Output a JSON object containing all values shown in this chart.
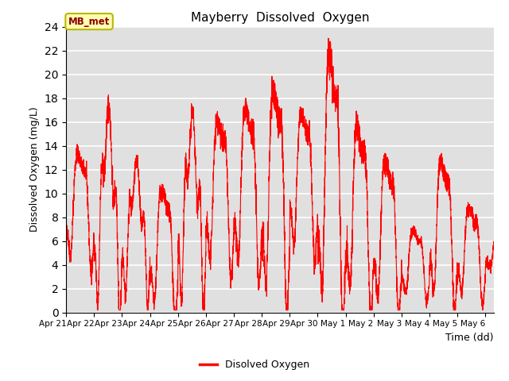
{
  "title": "Mayberry  Dissolved  Oxygen",
  "xlabel": "Time (dd)",
  "ylabel": "Dissolved Oxygen (mg/L)",
  "legend_label": "Disolved Oxygen",
  "annotation_text": "MB_met",
  "ylim": [
    0,
    24
  ],
  "yticks": [
    0,
    2,
    4,
    6,
    8,
    10,
    12,
    14,
    16,
    18,
    20,
    22,
    24
  ],
  "line_color": "#ff0000",
  "bg_color": "#e0e0e0",
  "tick_labels": [
    "Apr 21",
    "Apr 22",
    "Apr 23",
    "Apr 24",
    "Apr 25",
    "Apr 26",
    "Apr 27",
    "Apr 28",
    "Apr 29",
    "Apr 30",
    "May 1",
    "May 2",
    "May 3",
    "May 4",
    "May 5",
    "May 6"
  ],
  "tick_positions": [
    0,
    1,
    2,
    3,
    4,
    5,
    6,
    7,
    8,
    9,
    10,
    11,
    12,
    13,
    14,
    15
  ],
  "xlim": [
    0,
    15.3
  ],
  "day_envelopes": [
    {
      "max": 13.5,
      "min": 4.5,
      "peaks": 3
    },
    {
      "max": 16.0,
      "min": 1.5,
      "peaks": 4
    },
    {
      "max": 12.0,
      "min": 2.0,
      "peaks": 4
    },
    {
      "max": 10.5,
      "min": 0.5,
      "peaks": 3
    },
    {
      "max": 15.5,
      "min": 2.0,
      "peaks": 4
    },
    {
      "max": 16.5,
      "min": 4.0,
      "peaks": 3
    },
    {
      "max": 17.5,
      "min": 4.0,
      "peaks": 3
    },
    {
      "max": 19.0,
      "min": 2.0,
      "peaks": 3
    },
    {
      "max": 17.0,
      "min": 5.5,
      "peaks": 3
    },
    {
      "max": 22.0,
      "min": 1.0,
      "peaks": 3
    },
    {
      "max": 16.0,
      "min": 1.5,
      "peaks": 3
    },
    {
      "max": 13.0,
      "min": 1.0,
      "peaks": 3
    },
    {
      "max": 7.0,
      "min": 1.5,
      "peaks": 3
    },
    {
      "max": 13.0,
      "min": 1.5,
      "peaks": 3
    },
    {
      "max": 9.0,
      "min": 1.5,
      "peaks": 3
    },
    {
      "max": 9.0,
      "min": 2.5,
      "peaks": 2
    }
  ]
}
